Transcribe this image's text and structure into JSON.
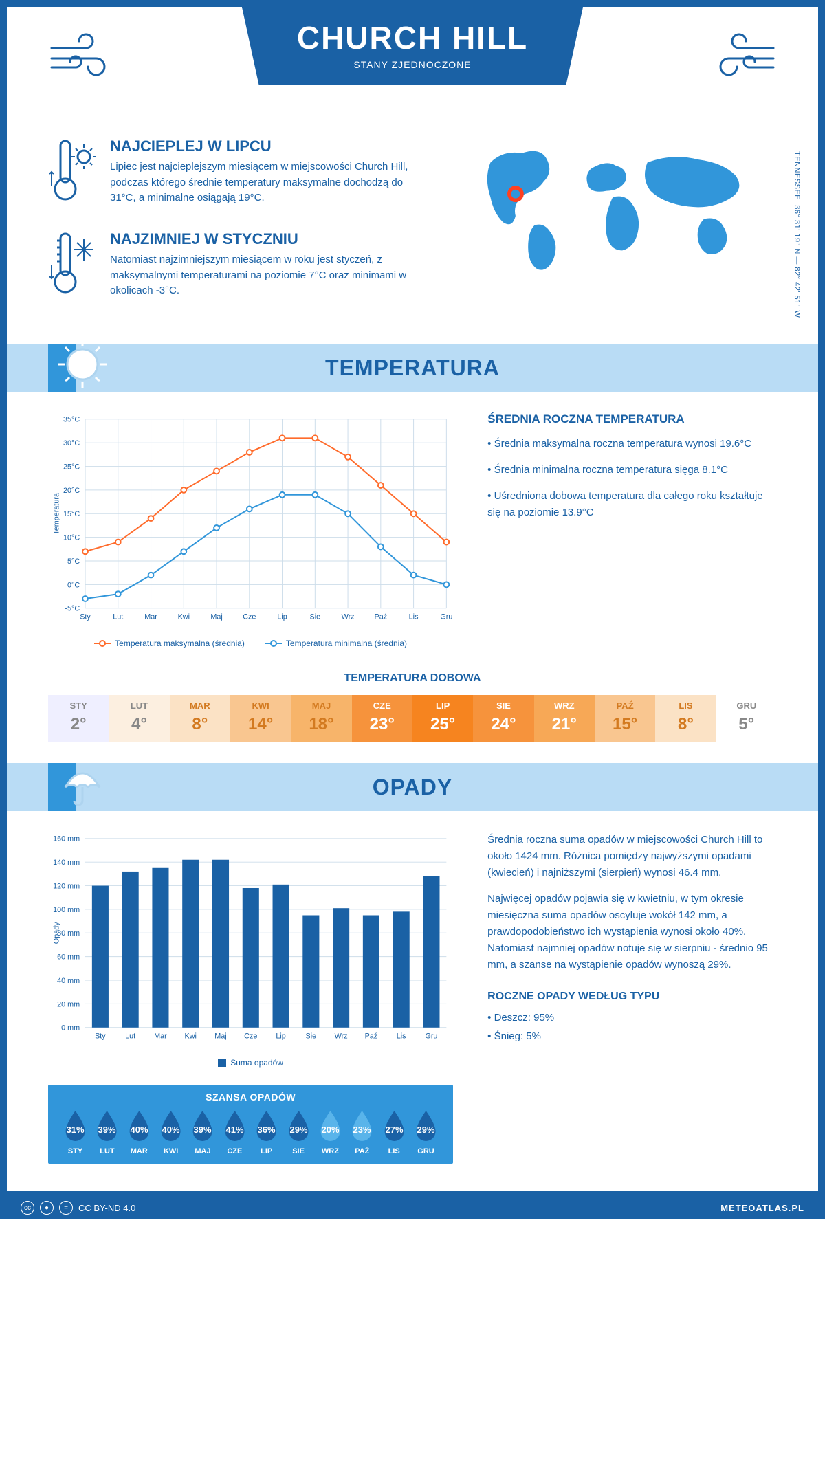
{
  "header": {
    "title": "CHURCH HILL",
    "subtitle": "STANY ZJEDNOCZONE",
    "state": "TENNESSEE",
    "coords": "36° 31' 19'' N — 82° 42' 51'' W"
  },
  "colors": {
    "primary": "#1a61a5",
    "light_blue": "#b9dcf5",
    "mid_blue": "#3196da",
    "line_max": "#ff6b2b",
    "line_min": "#3196da",
    "grid": "#cdddea"
  },
  "intro": {
    "hot": {
      "title": "NAJCIEPLEJ W LIPCU",
      "body": "Lipiec jest najcieplejszym miesiącem w miejscowości Church Hill, podczas którego średnie temperatury maksymalne dochodzą do 31°C, a minimalne osiągają 19°C."
    },
    "cold": {
      "title": "NAJZIMNIEJ W STYCZNIU",
      "body": "Natomiast najzimniejszym miesiącem w roku jest styczeń, z maksymalnymi temperaturami na poziomie 7°C oraz minimami w okolicach -3°C."
    }
  },
  "sections": {
    "temp": "TEMPERATURA",
    "rain": "OPADY"
  },
  "temp_chart": {
    "type": "line",
    "months": [
      "Sty",
      "Lut",
      "Mar",
      "Kwi",
      "Maj",
      "Cze",
      "Lip",
      "Sie",
      "Wrz",
      "Paź",
      "Lis",
      "Gru"
    ],
    "max_series": [
      7,
      9,
      14,
      20,
      24,
      28,
      31,
      31,
      27,
      21,
      15,
      9
    ],
    "min_series": [
      -3,
      -2,
      2,
      7,
      12,
      16,
      19,
      19,
      15,
      8,
      2,
      0
    ],
    "ylabel": "Temperatura",
    "ymin": -5,
    "ymax": 35,
    "ytick_step": 5,
    "legend_max": "Temperatura maksymalna (średnia)",
    "legend_min": "Temperatura minimalna (średnia)"
  },
  "temp_side": {
    "title": "ŚREDNIA ROCZNA TEMPERATURA",
    "bullet1": "• Średnia maksymalna roczna temperatura wynosi 19.6°C",
    "bullet2": "• Średnia minimalna roczna temperatura sięga 8.1°C",
    "bullet3": "• Uśredniona dobowa temperatura dla całego roku kształtuje się na poziomie 13.9°C"
  },
  "daily": {
    "title": "TEMPERATURA DOBOWA",
    "months": [
      "STY",
      "LUT",
      "MAR",
      "KWI",
      "MAJ",
      "CZE",
      "LIP",
      "SIE",
      "WRZ",
      "PAŹ",
      "LIS",
      "GRU"
    ],
    "values": [
      "2°",
      "4°",
      "8°",
      "14°",
      "18°",
      "23°",
      "25°",
      "24°",
      "21°",
      "15°",
      "8°",
      "5°"
    ],
    "bg_colors": [
      "#efefff",
      "#fcefe0",
      "#fbe2c5",
      "#f9c690",
      "#f7b46a",
      "#f6933c",
      "#f6841f",
      "#f6933c",
      "#f7a856",
      "#f9c690",
      "#fbe2c5",
      "#ffffff"
    ],
    "fg_colors": [
      "#888888",
      "#888888",
      "#d37a20",
      "#d37a20",
      "#d37a20",
      "#ffffff",
      "#ffffff",
      "#ffffff",
      "#ffffff",
      "#d37a20",
      "#d37a20",
      "#888888"
    ]
  },
  "rain_chart": {
    "type": "bar",
    "months": [
      "Sty",
      "Lut",
      "Mar",
      "Kwi",
      "Maj",
      "Cze",
      "Lip",
      "Sie",
      "Wrz",
      "Paź",
      "Lis",
      "Gru"
    ],
    "values": [
      120,
      132,
      135,
      142,
      142,
      118,
      121,
      95,
      101,
      95,
      98,
      128
    ],
    "ylabel": "Opady",
    "ymin": 0,
    "ymax": 160,
    "ytick_step": 20,
    "bar_color": "#1a61a5",
    "legend": "Suma opadów"
  },
  "rain_side": {
    "p1": "Średnia roczna suma opadów w miejscowości Church Hill to około 1424 mm. Różnica pomiędzy najwyższymi opadami (kwiecień) i najniższymi (sierpień) wynosi 46.4 mm.",
    "p2": "Najwięcej opadów pojawia się w kwietniu, w tym okresie miesięczna suma opadów oscyluje wokół 142 mm, a prawdopodobieństwo ich wystąpienia wynosi około 40%. Natomiast najmniej opadów notuje się w sierpniu - średnio 95 mm, a szanse na wystąpienie opadów wynoszą 29%."
  },
  "chance": {
    "title": "SZANSA OPADÓW",
    "months": [
      "STY",
      "LUT",
      "MAR",
      "KWI",
      "MAJ",
      "CZE",
      "LIP",
      "SIE",
      "WRZ",
      "PAŹ",
      "LIS",
      "GRU"
    ],
    "values": [
      "31%",
      "39%",
      "40%",
      "40%",
      "39%",
      "41%",
      "36%",
      "29%",
      "20%",
      "23%",
      "27%",
      "29%"
    ],
    "drop_colors": [
      "#1a61a5",
      "#1a61a5",
      "#1a61a5",
      "#1a61a5",
      "#1a61a5",
      "#1a61a5",
      "#1a61a5",
      "#1a61a5",
      "#59b4ea",
      "#59b4ea",
      "#1a61a5",
      "#1a61a5"
    ]
  },
  "rain_type": {
    "title": "ROCZNE OPADY WEDŁUG TYPU",
    "items": [
      "• Deszcz: 95%",
      "• Śnieg: 5%"
    ]
  },
  "footer": {
    "license": "CC BY-ND 4.0",
    "site": "METEOATLAS.PL"
  }
}
